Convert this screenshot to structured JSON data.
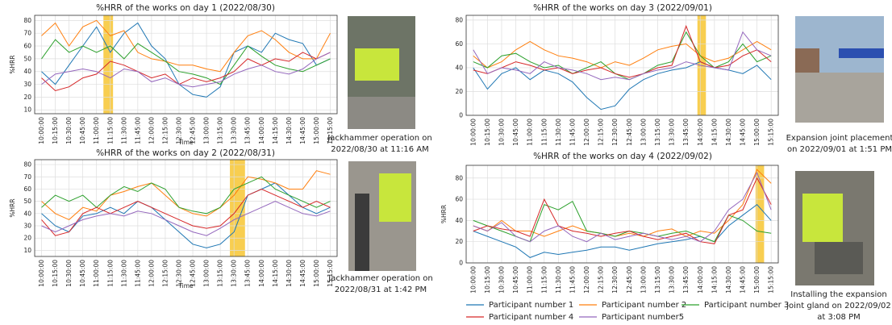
{
  "chart_data": [
    {
      "type": "line",
      "title": "%HRR of the works on day 1 (2022/08/30)",
      "x_label": "Time",
      "y_label": "%HRR",
      "x": [
        "10:00:00",
        "10:15:00",
        "10:30:00",
        "10:45:00",
        "11:00:00",
        "11:15:00",
        "11:30:00",
        "11:45:00",
        "12:00:00",
        "12:15:00",
        "12:30:00",
        "12:45:00",
        "13:00:00",
        "13:15:00",
        "13:30:00",
        "13:45:00",
        "14:00:00",
        "14:15:00",
        "14:30:00",
        "14:45:00",
        "15:00:00",
        "15:15:00"
      ],
      "ylim": [
        7,
        84
      ],
      "yticks": [
        10,
        20,
        30,
        40,
        50,
        60,
        70,
        80
      ],
      "grid": true,
      "highlight": {
        "start": 4.5,
        "end": 5.2,
        "color": "#f7c531"
      },
      "series": [
        {
          "name": "Participant number 1",
          "color": "#1f77b4",
          "values": [
            40,
            30,
            45,
            60,
            75,
            55,
            70,
            78,
            60,
            50,
            30,
            22,
            20,
            28,
            55,
            60,
            55,
            70,
            65,
            62,
            45,
            50
          ]
        },
        {
          "name": "Participant number 2",
          "color": "#ff7f0e",
          "values": [
            68,
            78,
            60,
            75,
            80,
            68,
            72,
            55,
            50,
            48,
            45,
            45,
            42,
            40,
            55,
            68,
            72,
            65,
            55,
            50,
            50,
            70
          ]
        },
        {
          "name": "Participant number 3",
          "color": "#2ca02c",
          "values": [
            50,
            65,
            55,
            60,
            55,
            60,
            50,
            62,
            55,
            48,
            40,
            38,
            35,
            30,
            45,
            60,
            52,
            45,
            42,
            40,
            45,
            50
          ]
        },
        {
          "name": "Participant number 4",
          "color": "#d62728",
          "values": [
            35,
            25,
            28,
            35,
            38,
            48,
            45,
            40,
            35,
            38,
            30,
            35,
            32,
            35,
            40,
            50,
            45,
            50,
            48,
            55,
            50,
            55
          ]
        },
        {
          "name": "Participant number5",
          "color": "#9467bd",
          "values": [
            30,
            38,
            40,
            42,
            40,
            35,
            42,
            40,
            32,
            35,
            30,
            28,
            30,
            32,
            38,
            42,
            45,
            40,
            38,
            42,
            50,
            55
          ]
        }
      ]
    },
    {
      "type": "line",
      "title": "%HRR of the works on day 2 (2022/08/31)",
      "x_label": "Time",
      "y_label": "%HRR",
      "x": [
        "10:00:00",
        "10:15:00",
        "10:30:00",
        "10:45:00",
        "11:00:00",
        "11:15:00",
        "11:30:00",
        "11:45:00",
        "12:00:00",
        "12:15:00",
        "12:30:00",
        "12:45:00",
        "13:00:00",
        "13:15:00",
        "13:30:00",
        "13:45:00",
        "14:00:00",
        "14:15:00",
        "14:30:00",
        "14:45:00",
        "15:00:00",
        "15:15:00"
      ],
      "ylim": [
        5,
        84
      ],
      "yticks": [
        10,
        20,
        30,
        40,
        50,
        60,
        70,
        80
      ],
      "grid": true,
      "highlight": {
        "start": 13.7,
        "end": 14.8,
        "color": "#f7c531"
      },
      "series": [
        {
          "name": "Participant number 1",
          "color": "#1f77b4",
          "values": [
            40,
            30,
            25,
            38,
            40,
            45,
            40,
            50,
            45,
            35,
            25,
            15,
            12,
            15,
            25,
            55,
            60,
            65,
            55,
            45,
            40,
            45
          ]
        },
        {
          "name": "Participant number 2",
          "color": "#ff7f0e",
          "values": [
            50,
            40,
            35,
            45,
            42,
            55,
            58,
            62,
            65,
            55,
            45,
            40,
            38,
            45,
            55,
            70,
            68,
            65,
            60,
            60,
            75,
            72
          ]
        },
        {
          "name": "Participant number 3",
          "color": "#2ca02c",
          "values": [
            45,
            55,
            50,
            55,
            45,
            55,
            62,
            58,
            65,
            60,
            45,
            42,
            40,
            45,
            60,
            65,
            70,
            60,
            55,
            50,
            45,
            50
          ]
        },
        {
          "name": "Participant number 4",
          "color": "#d62728",
          "values": [
            35,
            22,
            25,
            40,
            45,
            40,
            45,
            50,
            45,
            40,
            35,
            30,
            28,
            30,
            40,
            55,
            60,
            55,
            50,
            45,
            50,
            45
          ]
        },
        {
          "name": "Participant number5",
          "color": "#9467bd",
          "values": [
            30,
            25,
            30,
            35,
            38,
            40,
            38,
            42,
            40,
            35,
            30,
            25,
            22,
            28,
            35,
            40,
            45,
            50,
            45,
            40,
            38,
            42
          ]
        }
      ]
    },
    {
      "type": "line",
      "title": "%HRR of the works on day 3 (2022/09/01)",
      "x": [
        "10:00:00",
        "10:15:00",
        "10:30:00",
        "10:45:00",
        "11:00:00",
        "11:15:00",
        "11:30:00",
        "11:45:00",
        "12:00:00",
        "12:15:00",
        "12:30:00",
        "12:45:00",
        "13:00:00",
        "13:15:00",
        "13:30:00",
        "13:45:00",
        "14:00:00",
        "14:15:00",
        "14:30:00",
        "14:45:00",
        "15:00:00",
        "15:15:00"
      ],
      "ylim": [
        0,
        84
      ],
      "yticks": [
        0,
        20,
        40,
        60,
        80
      ],
      "grid": true,
      "highlight": {
        "start": 15.8,
        "end": 16.4,
        "color": "#f7c531"
      },
      "series": [
        {
          "name": "Participant number 1",
          "color": "#1f77b4",
          "values": [
            40,
            22,
            35,
            40,
            30,
            38,
            35,
            28,
            15,
            5,
            8,
            22,
            30,
            35,
            38,
            40,
            45,
            40,
            38,
            35,
            42,
            30
          ]
        },
        {
          "name": "Participant number 2",
          "color": "#ff7f0e",
          "values": [
            50,
            40,
            45,
            55,
            62,
            55,
            50,
            48,
            45,
            40,
            45,
            42,
            48,
            55,
            58,
            60,
            50,
            45,
            48,
            55,
            62,
            55
          ]
        },
        {
          "name": "Participant number 3",
          "color": "#2ca02c",
          "values": [
            45,
            40,
            50,
            52,
            45,
            40,
            42,
            35,
            40,
            45,
            35,
            30,
            35,
            42,
            45,
            70,
            50,
            40,
            45,
            60,
            45,
            50
          ]
        },
        {
          "name": "Participant number 4",
          "color": "#d62728",
          "values": [
            38,
            35,
            40,
            45,
            42,
            38,
            40,
            35,
            38,
            40,
            35,
            32,
            35,
            40,
            42,
            75,
            45,
            40,
            42,
            50,
            55,
            45
          ]
        },
        {
          "name": "Participant number5",
          "color": "#9467bd",
          "values": [
            55,
            35,
            40,
            38,
            35,
            45,
            40,
            38,
            35,
            30,
            32,
            30,
            35,
            38,
            40,
            45,
            42,
            40,
            38,
            70,
            55,
            50
          ]
        }
      ]
    },
    {
      "type": "line",
      "title": "%HRR of the works on day 4 (2022/09/02)",
      "y_label": "%HRR",
      "x": [
        "10:00:00",
        "10:15:00",
        "10:30:00",
        "10:45:00",
        "11:00:00",
        "11:15:00",
        "11:30:00",
        "11:45:00",
        "12:00:00",
        "12:15:00",
        "12:30:00",
        "12:45:00",
        "13:00:00",
        "13:15:00",
        "13:30:00",
        "13:45:00",
        "14:00:00",
        "14:15:00",
        "14:30:00",
        "14:45:00",
        "15:00:00",
        "15:15:00"
      ],
      "ylim": [
        0,
        92
      ],
      "yticks": [
        0,
        20,
        40,
        60,
        80
      ],
      "grid": true,
      "highlight": {
        "start": 19.9,
        "end": 20.5,
        "color": "#f7c531"
      },
      "series": [
        {
          "name": "Participant number 1",
          "color": "#1f77b4",
          "values": [
            30,
            25,
            20,
            15,
            5,
            10,
            8,
            10,
            12,
            15,
            15,
            12,
            15,
            18,
            20,
            22,
            25,
            20,
            35,
            45,
            55,
            40
          ]
        },
        {
          "name": "Participant number 2",
          "color": "#ff7f0e",
          "values": [
            35,
            30,
            40,
            30,
            30,
            25,
            30,
            35,
            30,
            28,
            25,
            28,
            25,
            30,
            32,
            25,
            30,
            28,
            40,
            55,
            88,
            75
          ]
        },
        {
          "name": "Participant number 3",
          "color": "#2ca02c",
          "values": [
            40,
            35,
            30,
            25,
            20,
            55,
            50,
            58,
            30,
            28,
            25,
            30,
            28,
            25,
            28,
            30,
            25,
            20,
            45,
            40,
            30,
            28
          ]
        },
        {
          "name": "Participant number 4",
          "color": "#d62728",
          "values": [
            30,
            35,
            32,
            30,
            25,
            60,
            35,
            30,
            28,
            25,
            28,
            30,
            25,
            22,
            25,
            28,
            20,
            18,
            45,
            50,
            80,
            55
          ]
        },
        {
          "name": "Participant number5",
          "color": "#9467bd",
          "values": [
            35,
            30,
            38,
            25,
            20,
            30,
            35,
            25,
            20,
            28,
            22,
            25,
            28,
            25,
            22,
            25,
            20,
            30,
            50,
            60,
            85,
            50
          ]
        }
      ]
    }
  ],
  "photos": [
    {
      "caption": [
        "Jackhammer operation on",
        "2022/08/30 at 11:16 AM"
      ]
    },
    {
      "caption": [
        "Jackhammer operation on",
        "2022/08/31 at 1:42 PM"
      ]
    },
    {
      "caption": [
        "Expansion joint placement",
        "on 2022/09/01 at 1:51 PM"
      ]
    },
    {
      "caption": [
        "Installing the expansion",
        "joint gland on 2022/09/02",
        "at 3:08 PM"
      ]
    }
  ]
}
